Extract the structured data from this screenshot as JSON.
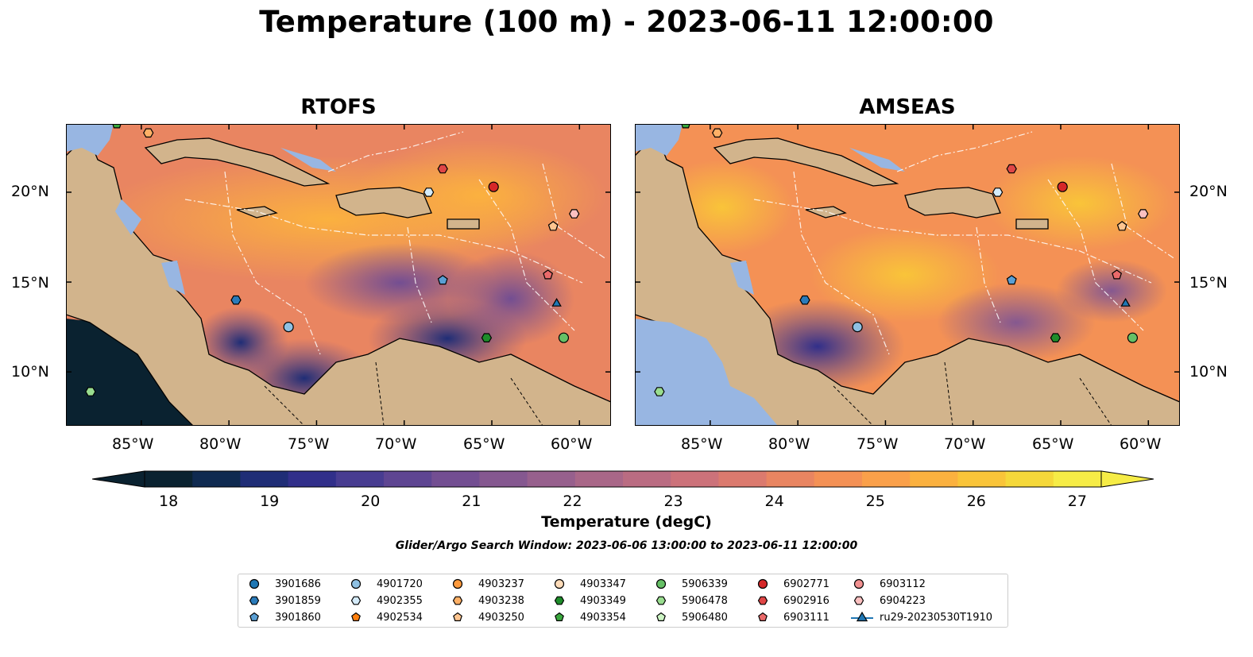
{
  "title": "Temperature (100 m) - 2023-06-11 12:00:00",
  "panels": [
    {
      "title": "RTOFS"
    },
    {
      "title": "AMSEAS"
    }
  ],
  "axes": {
    "lat_labels": [
      "20°N",
      "15°N",
      "10°N"
    ],
    "lon_labels": [
      "85°W",
      "80°W",
      "75°W",
      "70°W",
      "65°W",
      "60°W"
    ],
    "lon_range": [
      -89.3,
      -58.2
    ],
    "lat_range": [
      7.0,
      23.8
    ]
  },
  "colorbar": {
    "label": "Temperature (degC)",
    "ticks": [
      "18",
      "19",
      "20",
      "21",
      "22",
      "23",
      "24",
      "25",
      "26",
      "27"
    ],
    "range": [
      18,
      27
    ],
    "colors": [
      "#0a2230",
      "#0f2a50",
      "#1f2d76",
      "#312f8a",
      "#483c91",
      "#5e4592",
      "#734e92",
      "#855890",
      "#97608d",
      "#a96788",
      "#ba6c82",
      "#cc727a",
      "#db7a6e",
      "#e98561",
      "#f49155",
      "#faa04a",
      "#fbb13f",
      "#f9c439",
      "#f5d83a",
      "#f6ec46"
    ]
  },
  "search_window": "Glider/Argo Search Window: 2023-06-06 13:00:00 to 2023-06-11 12:00:00",
  "legend": [
    {
      "label": "3901686",
      "marker": "circle",
      "color": "#1f77b4"
    },
    {
      "label": "3901859",
      "marker": "hexagon",
      "color": "#2b7bba"
    },
    {
      "label": "3901860",
      "marker": "pentagon",
      "color": "#5a9fd4"
    },
    {
      "label": "4901720",
      "marker": "circle",
      "color": "#8fc1e3"
    },
    {
      "label": "4902355",
      "marker": "hexagon",
      "color": "#d4ebfa"
    },
    {
      "label": "4902534",
      "marker": "pentagon",
      "color": "#ff7f0e"
    },
    {
      "label": "4903237",
      "marker": "circle",
      "color": "#ff9a3c"
    },
    {
      "label": "4903238",
      "marker": "hexagon",
      "color": "#ffb066"
    },
    {
      "label": "4903250",
      "marker": "pentagon",
      "color": "#ffc590"
    },
    {
      "label": "4903347",
      "marker": "circle",
      "color": "#ffdcb9"
    },
    {
      "label": "4903349",
      "marker": "hexagon",
      "color": "#1e8c2a"
    },
    {
      "label": "4903354",
      "marker": "pentagon",
      "color": "#3aa83e"
    },
    {
      "label": "5906339",
      "marker": "circle",
      "color": "#66c066"
    },
    {
      "label": "5906478",
      "marker": "hexagon",
      "color": "#99dd8f"
    },
    {
      "label": "5906480",
      "marker": "pentagon",
      "color": "#cdf5c4"
    },
    {
      "label": "6902771",
      "marker": "circle",
      "color": "#d62728"
    },
    {
      "label": "6902916",
      "marker": "hexagon",
      "color": "#e04646"
    },
    {
      "label": "6903111",
      "marker": "pentagon",
      "color": "#ea6a6a"
    },
    {
      "label": "6903112",
      "marker": "circle",
      "color": "#f29191"
    },
    {
      "label": "6904223",
      "marker": "hexagon",
      "color": "#fbc0c0"
    },
    {
      "label": "ru29-20230530T1910",
      "marker": "triangle-line",
      "color": "#1f77b4"
    }
  ],
  "map_colors": {
    "land": "#d2b48c",
    "shallow": "#98b6e2",
    "coast": "#000000",
    "eez": "#ffffff"
  },
  "floats": [
    {
      "id": "3901859",
      "lon": -79.6,
      "lat": 14.0,
      "marker": "hexagon",
      "color": "#2b7bba"
    },
    {
      "id": "3901860",
      "lon": -67.8,
      "lat": 15.1,
      "marker": "pentagon",
      "color": "#5a9fd4"
    },
    {
      "id": "4901720",
      "lon": -76.6,
      "lat": 12.5,
      "marker": "circle",
      "color": "#8fc1e3"
    },
    {
      "id": "4902355",
      "lon": -68.6,
      "lat": 20.0,
      "marker": "hexagon",
      "color": "#d4ebfa"
    },
    {
      "id": "4903238",
      "lon": -84.6,
      "lat": 23.3,
      "marker": "hexagon",
      "color": "#ffb066"
    },
    {
      "id": "4903250",
      "lon": -61.5,
      "lat": 18.1,
      "marker": "pentagon",
      "color": "#ffc590"
    },
    {
      "id": "4903354",
      "lon": -86.4,
      "lat": 23.8,
      "marker": "pentagon",
      "color": "#3aa83e"
    },
    {
      "id": "5906339",
      "lon": -60.9,
      "lat": 11.9,
      "marker": "circle",
      "color": "#66c066"
    },
    {
      "id": "5906339b",
      "lon": -65.3,
      "lat": 11.9,
      "marker": "hexagon",
      "color": "#1e8c2a"
    },
    {
      "id": "5906478",
      "lon": -87.9,
      "lat": 8.9,
      "marker": "hexagon",
      "color": "#99dd8f"
    },
    {
      "id": "6902771",
      "lon": -64.9,
      "lat": 20.3,
      "marker": "circle",
      "color": "#d62728"
    },
    {
      "id": "6902916",
      "lon": -67.8,
      "lat": 21.3,
      "marker": "hexagon",
      "color": "#e04646"
    },
    {
      "id": "6903111",
      "lon": -61.8,
      "lat": 15.4,
      "marker": "pentagon",
      "color": "#ea6a6a"
    },
    {
      "id": "6904223",
      "lon": -60.3,
      "lat": 18.8,
      "marker": "hexagon",
      "color": "#fbc0c0"
    },
    {
      "id": "ru29",
      "lon": -61.3,
      "lat": 13.8,
      "marker": "triangle",
      "color": "#1f77b4"
    }
  ]
}
